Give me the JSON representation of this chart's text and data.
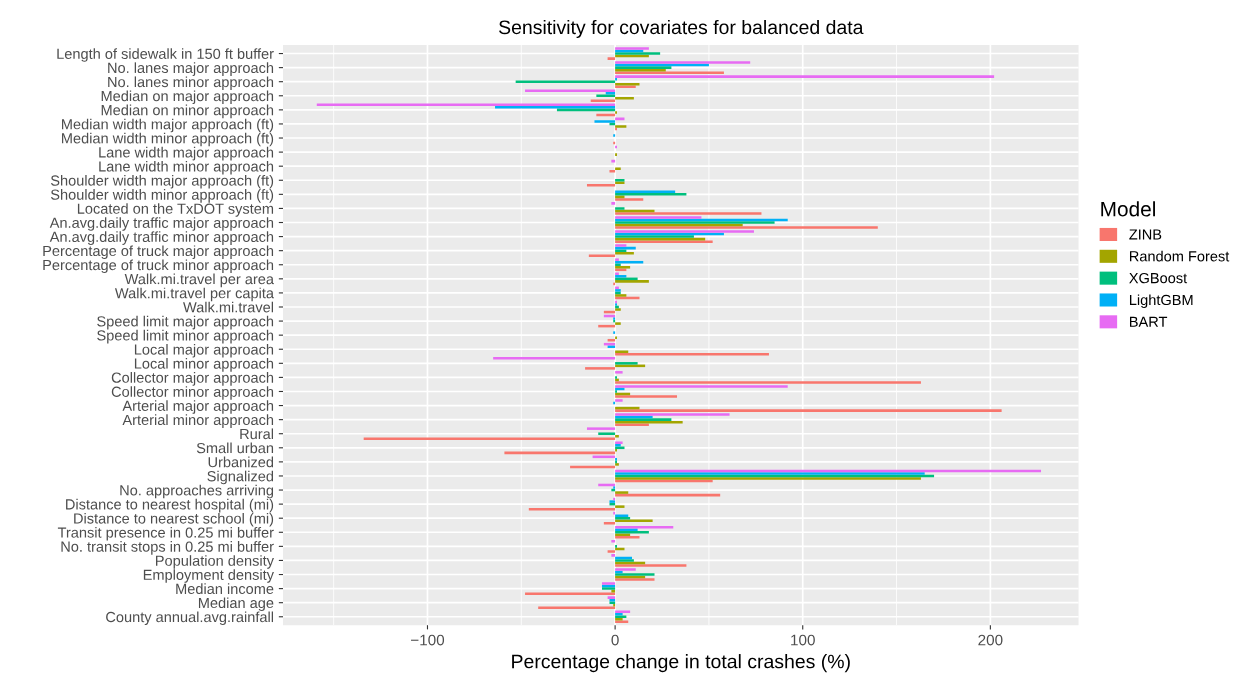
{
  "chart_data": {
    "type": "bar",
    "orientation": "horizontal",
    "title": "Sensitivity for covariates for balanced data",
    "xlabel": "Percentage change in total crashes (%)",
    "legend_title": "Model",
    "legend": "right",
    "grid": true,
    "categories": [
      "Length of sidewalk in 150 ft buffer",
      "No. lanes major approach",
      "No. lanes minor approach",
      "Median on major approach",
      "Median on minor approach",
      "Median width major approach (ft)",
      "Median width minor approach (ft)",
      "Lane width major approach",
      "Lane width minor approach",
      "Shoulder width major approach (ft)",
      "Shoulder width minor approach (ft)",
      "Located on the TxDOT system",
      "An.avg.daily traffic major approach",
      "An.avg.daily traffic minor approach",
      "Percentage of truck major approach",
      "Percentage of truck minor approach",
      "Walk.mi.travel per area",
      "Walk.mi.travel per capita",
      "Walk.mi.travel",
      "Speed limit major approach",
      "Speed limit minor approach",
      "Local major approach",
      "Local minor approach",
      "Collector major approach",
      "Collector minor approach",
      "Arterial major approach",
      "Arterial minor approach",
      "Rural",
      "Small urban",
      "Urbanized",
      "Signalized",
      "No. approaches arriving",
      "Distance to nearest hospital (mi)",
      "Distance to nearest school (mi)",
      "Transit presence in 0.25 mi buffer",
      "No. transit stops in 0.25 mi buffer",
      "Population density",
      "Employment density",
      "Median income",
      "Median age",
      "County annual.avg.rainfall"
    ],
    "xlim": [
      -177,
      247
    ],
    "xticks": [
      -100,
      0,
      100,
      200
    ],
    "series": [
      {
        "name": "ZINB",
        "color": "#F8766D",
        "values": [
          -4,
          58,
          11,
          -13,
          -10,
          1,
          -1,
          0,
          -3,
          -15,
          15,
          78,
          140,
          52,
          -14,
          6,
          -1,
          13,
          -6,
          -9,
          -4,
          82,
          -16,
          163,
          33,
          206,
          18,
          -134,
          -59,
          -24,
          52,
          56,
          -46,
          -6,
          13,
          -4,
          38,
          21,
          -48,
          -41,
          7
        ]
      },
      {
        "name": "Random Forest",
        "color": "#A3A500",
        "values": [
          18,
          27,
          13,
          10,
          1,
          6,
          0,
          1,
          3,
          5,
          5,
          21,
          68,
          48,
          10,
          8,
          18,
          6,
          3,
          3,
          1,
          7,
          16,
          2,
          8,
          13,
          36,
          2,
          1,
          2,
          163,
          7,
          5,
          20,
          8,
          5,
          16,
          16,
          -2,
          -1,
          4
        ]
      },
      {
        "name": "XGBoost",
        "color": "#00BF7D",
        "values": [
          24,
          30,
          -53,
          -10,
          -31,
          -3,
          0,
          0,
          0,
          5,
          38,
          5,
          85,
          42,
          6,
          3,
          12,
          3,
          2,
          -1,
          0,
          0,
          12,
          1,
          1,
          0,
          30,
          -9,
          5,
          1,
          170,
          -2,
          -3,
          8,
          18,
          1,
          10,
          21,
          -7,
          -3,
          6
        ]
      },
      {
        "name": "LightGBM",
        "color": "#00B0F6",
        "values": [
          15,
          50,
          1,
          -5,
          -64,
          -11,
          -1,
          0,
          0,
          0,
          32,
          0,
          92,
          58,
          11,
          15,
          6,
          3,
          1,
          -1,
          -1,
          -4,
          0,
          0,
          5,
          -1,
          20,
          0,
          3,
          1,
          165,
          -1,
          -3,
          7,
          12,
          0,
          9,
          4,
          -7,
          -3,
          4
        ]
      },
      {
        "name": "BART",
        "color": "#E76BF3",
        "values": [
          18,
          72,
          202,
          -48,
          -159,
          5,
          0,
          1,
          -2,
          0,
          0,
          -2,
          46,
          74,
          6,
          2,
          2,
          2,
          1,
          -6,
          0,
          -6,
          -65,
          4,
          92,
          4,
          61,
          -15,
          4,
          -12,
          227,
          -9,
          -1,
          -1,
          31,
          -2,
          -2,
          11,
          -7,
          -4,
          8
        ]
      }
    ]
  }
}
